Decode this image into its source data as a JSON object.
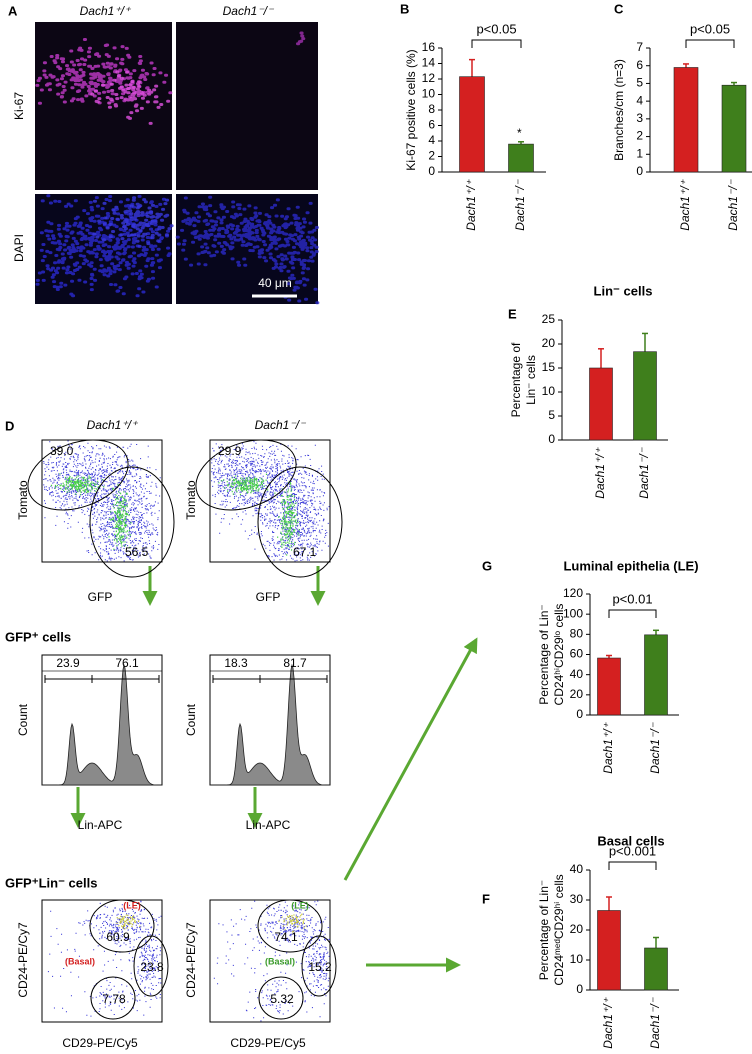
{
  "panel_a": {
    "label": "A",
    "columns": [
      "Dach1⁺/⁺",
      "Dach1⁻/⁻"
    ],
    "rows": [
      "Ki-67",
      "DAPI"
    ],
    "scale_bar": "40 μm"
  },
  "panel_d": {
    "label": "D",
    "columns": [
      "Dach1⁺/⁺",
      "Dach1⁻/⁻"
    ],
    "gfp_tomato": {
      "y_label": "Tomato",
      "x_label": "GFP",
      "gates": [
        [
          "39.0",
          "56.5"
        ],
        [
          "29.9",
          "67.1"
        ]
      ]
    },
    "gfp_cells": {
      "title": "GFP⁺ cells",
      "y_label": "Count",
      "x_label": "Lin-APC",
      "gates": [
        [
          "23.9",
          "76.1"
        ],
        [
          "18.3",
          "81.7"
        ]
      ]
    },
    "lin_cells": {
      "title": "GFP⁺Lin⁻ cells",
      "y_label": "CD24-PE/Cy7",
      "x_label": "CD29-PE/Cy5",
      "populations": [
        "(LE)",
        "(Basal)"
      ],
      "gates": [
        [
          "60.9",
          "23.8",
          "7.78"
        ],
        [
          "74.1",
          "15.2",
          "5.32"
        ]
      ]
    }
  },
  "chart_data": [
    {
      "type": "bar",
      "label": "B",
      "ylabel": [
        "Ki-67 positive cells (%)"
      ],
      "categories": [
        "Dach1⁺/⁺",
        "Dach1⁻/⁻"
      ],
      "values": [
        12.3,
        3.6
      ],
      "errors": [
        2.2,
        0.3
      ],
      "colors": [
        "#d42020",
        "#3f7f1c"
      ],
      "ylim": [
        0,
        16
      ],
      "yticks": [
        0,
        2,
        4,
        6,
        8,
        10,
        12,
        14,
        16
      ],
      "annotation": "p<0.05",
      "marker": "*"
    },
    {
      "type": "bar",
      "label": "C",
      "ylabel": [
        "Branches/cm (n=3)"
      ],
      "categories": [
        "Dach1⁺/⁺",
        "Dach1⁻/⁻"
      ],
      "values": [
        5.9,
        4.9
      ],
      "errors": [
        0.2,
        0.15
      ],
      "colors": [
        "#d42020",
        "#3f7f1c"
      ],
      "ylim": [
        0,
        7
      ],
      "yticks": [
        0,
        1,
        2,
        3,
        4,
        5,
        6,
        7
      ],
      "annotation": "p<0.05"
    },
    {
      "type": "bar",
      "label": "E",
      "title": "Lin⁻ cells",
      "ylabel": [
        "Percentage of",
        "Lin⁻ cells"
      ],
      "categories": [
        "Dach1⁺/⁺",
        "Dach1⁻/⁻"
      ],
      "values": [
        15,
        18.4
      ],
      "errors": [
        4,
        3.8
      ],
      "colors": [
        "#d42020",
        "#3f7f1c"
      ],
      "ylim": [
        0,
        25
      ],
      "yticks": [
        0,
        5,
        10,
        15,
        20,
        25
      ]
    },
    {
      "type": "bar",
      "label": "G",
      "title": "Luminal epithelia (LE)",
      "ylabel": [
        "Percentage of Lin⁻",
        "CD24ʰⁱCD29ˡᵒ cells"
      ],
      "categories": [
        "Dach1⁺/⁺",
        "Dach1⁻/⁻"
      ],
      "values": [
        56.5,
        79.5
      ],
      "errors": [
        2.5,
        4.5
      ],
      "colors": [
        "#d42020",
        "#3f7f1c"
      ],
      "ylim": [
        0,
        120
      ],
      "yticks": [
        0,
        20,
        40,
        60,
        80,
        100,
        120
      ],
      "annotation": "p<0.01"
    },
    {
      "type": "bar",
      "label": "F",
      "title": "Basal cells",
      "ylabel": [
        "Percentage of Lin⁻",
        "CD24ᵐᵉᵈCD29ʰⁱ cells"
      ],
      "categories": [
        "Dach1⁺/⁺",
        "Dach1⁻/⁻"
      ],
      "values": [
        26.5,
        14
      ],
      "errors": [
        4.5,
        3.5
      ],
      "colors": [
        "#d42020",
        "#3f7f1c"
      ],
      "ylim": [
        0,
        40
      ],
      "yticks": [
        0,
        10,
        20,
        30,
        40
      ],
      "annotation": "p<0.001"
    }
  ]
}
